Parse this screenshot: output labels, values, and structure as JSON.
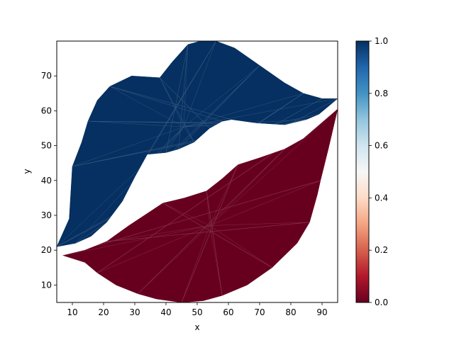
{
  "chart_data": {
    "type": "tripcolor",
    "title": "",
    "xlabel": "x",
    "ylabel": "y",
    "xlim": [
      5,
      95
    ],
    "ylim": [
      5,
      80
    ],
    "xticks": [
      10,
      20,
      30,
      40,
      50,
      60,
      70,
      80,
      90
    ],
    "yticks": [
      10,
      20,
      30,
      40,
      50,
      60,
      70
    ],
    "colormap": "RdBu",
    "colorbar": {
      "range": [
        0,
        1
      ],
      "ticks": [
        "0.0",
        "0.2",
        "0.4",
        "0.6",
        "0.8",
        "1.0"
      ]
    },
    "regions": [
      {
        "name": "upper lip",
        "value": 1.0,
        "color": "#053061",
        "outline": [
          [
            5,
            21
          ],
          [
            9,
            29
          ],
          [
            10,
            44
          ],
          [
            13,
            51
          ],
          [
            15,
            57
          ],
          [
            18,
            63
          ],
          [
            22,
            67
          ],
          [
            29,
            70
          ],
          [
            38,
            69.5
          ],
          [
            42,
            74
          ],
          [
            47,
            79
          ],
          [
            51,
            80
          ],
          [
            56,
            80
          ],
          [
            62,
            78
          ],
          [
            70,
            73
          ],
          [
            78,
            68
          ],
          [
            84,
            65
          ],
          [
            90,
            63.5
          ],
          [
            95,
            63.5
          ],
          [
            89,
            59
          ],
          [
            85,
            57.5
          ],
          [
            78,
            56
          ],
          [
            69,
            56.5
          ],
          [
            61,
            57.5
          ],
          [
            58,
            57
          ],
          [
            54,
            55
          ],
          [
            49,
            51
          ],
          [
            44,
            49
          ],
          [
            40,
            48
          ],
          [
            34,
            47.5
          ],
          [
            30,
            41
          ],
          [
            26,
            34
          ],
          [
            21,
            28
          ],
          [
            16,
            24
          ],
          [
            11,
            22
          ]
        ]
      },
      {
        "name": "lower lip",
        "value": 0.0,
        "color": "#67001f",
        "outline": [
          [
            7,
            18.5
          ],
          [
            14,
            20
          ],
          [
            21,
            22.5
          ],
          [
            28,
            27
          ],
          [
            39,
            33.5
          ],
          [
            46,
            35
          ],
          [
            53,
            37
          ],
          [
            58,
            40.5
          ],
          [
            63,
            44.5
          ],
          [
            70,
            46.5
          ],
          [
            78,
            49
          ],
          [
            84,
            52
          ],
          [
            95,
            60.5
          ],
          [
            92,
            49
          ],
          [
            89.5,
            40
          ],
          [
            88.5,
            36
          ],
          [
            86,
            28
          ],
          [
            82,
            22
          ],
          [
            74,
            15
          ],
          [
            66,
            10
          ],
          [
            58,
            7
          ],
          [
            52,
            5.5
          ],
          [
            45,
            5
          ],
          [
            37,
            6
          ],
          [
            31,
            7.5
          ],
          [
            24,
            10
          ],
          [
            18,
            13.5
          ],
          [
            14,
            16.5
          ]
        ]
      }
    ]
  }
}
